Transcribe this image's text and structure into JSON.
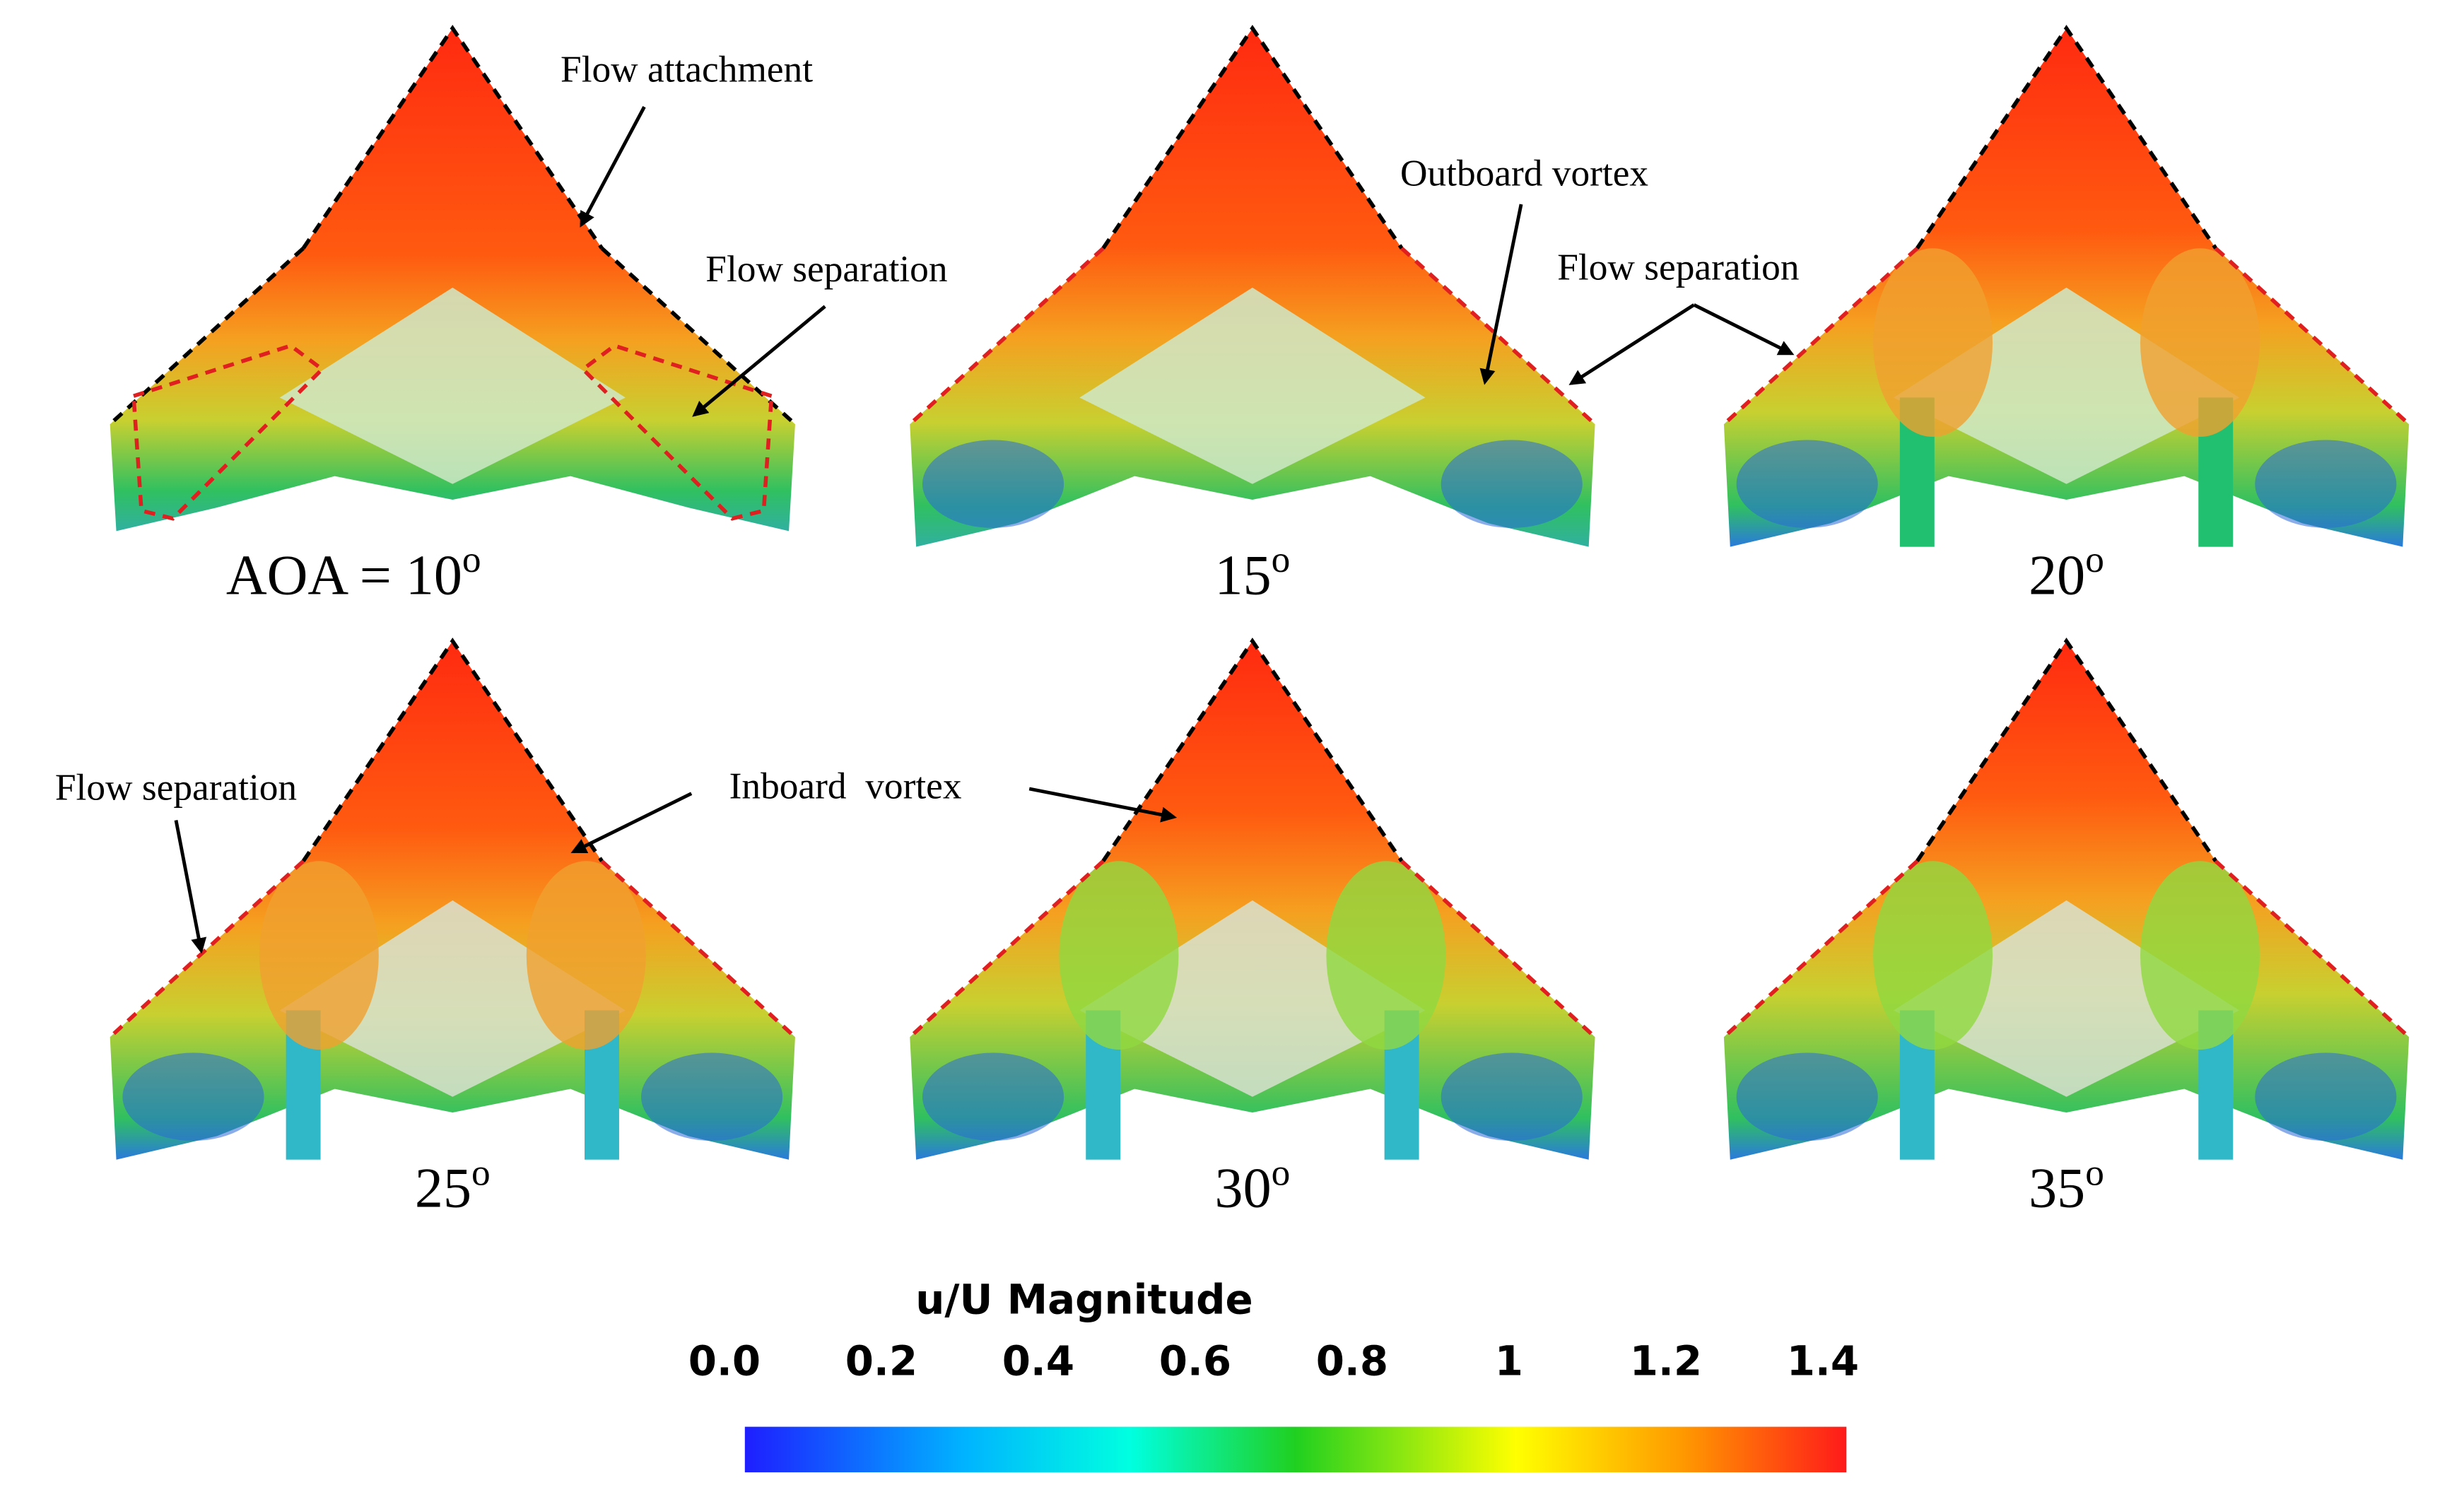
{
  "figure": {
    "panels": [
      {
        "label": "AOA = 10",
        "sup": "o"
      },
      {
        "label": "15",
        "sup": "o"
      },
      {
        "label": "20",
        "sup": "o"
      },
      {
        "label": "25",
        "sup": "o"
      },
      {
        "label": "30",
        "sup": "o"
      },
      {
        "label": "35",
        "sup": "o"
      }
    ],
    "annotations": [
      "Flow attachment",
      "Flow separation",
      "Outboard vortex",
      "Flow separation",
      "Flow separation",
      "Inboard  vortex"
    ],
    "colorbar": {
      "title": "u/U Magnitude",
      "ticks": [
        {
          "value": 0,
          "label": "0.0"
        },
        0.2,
        0.4,
        0.6,
        0.8,
        1,
        1.2,
        1.4
      ]
    }
  }
}
